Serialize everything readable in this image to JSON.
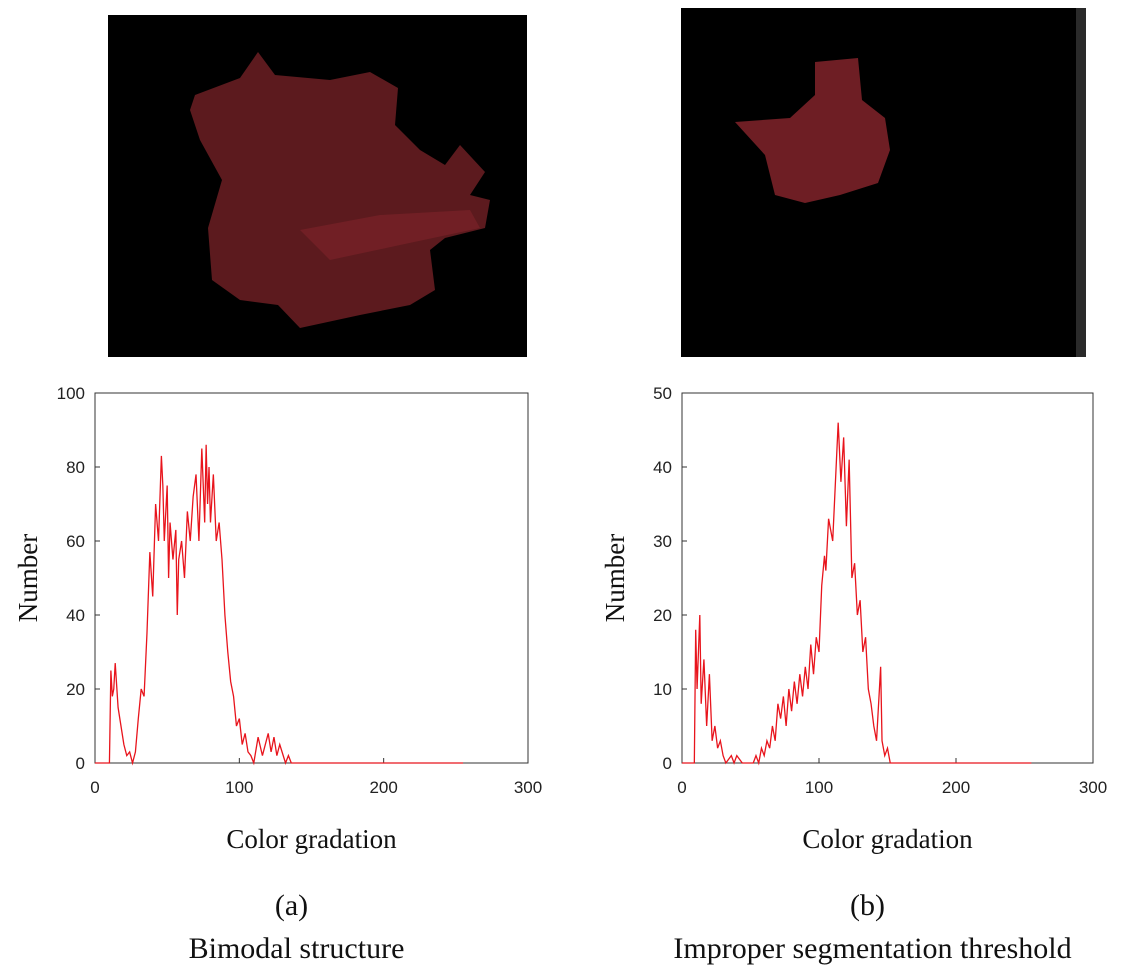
{
  "chart_data": [
    {
      "type": "line",
      "xlabel": "Color gradation",
      "ylabel": "Number",
      "panel_label": "(a)",
      "caption": "Bimodal structure",
      "xlim": [
        0,
        300
      ],
      "xticks": [
        0,
        100,
        200,
        300
      ],
      "ylim": [
        0,
        100
      ],
      "yticks": [
        0,
        20,
        40,
        60,
        80,
        100
      ],
      "grid": false,
      "series": [
        {
          "color": "#e8141c",
          "x": [
            0,
            10,
            11,
            12,
            13,
            14,
            16,
            18,
            20,
            22,
            24,
            26,
            28,
            30,
            32,
            34,
            36,
            38,
            40,
            42,
            44,
            46,
            47,
            48,
            50,
            51,
            52,
            54,
            56,
            57,
            58,
            60,
            62,
            64,
            66,
            68,
            70,
            72,
            74,
            76,
            77,
            78,
            79,
            80,
            82,
            84,
            86,
            88,
            90,
            92,
            94,
            96,
            98,
            100,
            102,
            104,
            106,
            108,
            110,
            113,
            116,
            120,
            122,
            124,
            126,
            128,
            132,
            134,
            136,
            140,
            255
          ],
          "values": [
            0,
            0,
            25,
            18,
            20,
            27,
            15,
            10,
            5,
            2,
            3,
            0,
            3,
            12,
            20,
            18,
            35,
            57,
            45,
            70,
            60,
            83,
            75,
            60,
            75,
            50,
            65,
            55,
            63,
            40,
            55,
            60,
            50,
            68,
            60,
            72,
            78,
            60,
            85,
            65,
            86,
            70,
            80,
            65,
            78,
            60,
            65,
            55,
            40,
            30,
            22,
            18,
            10,
            12,
            5,
            8,
            3,
            2,
            0,
            7,
            2,
            8,
            3,
            7,
            2,
            5,
            0,
            2,
            0,
            0,
            0
          ]
        }
      ]
    },
    {
      "type": "line",
      "xlabel": "Color gradation",
      "ylabel": "Number",
      "panel_label": "(b)",
      "caption": "Improper segmentation threshold",
      "xlim": [
        0,
        300
      ],
      "xticks": [
        0,
        100,
        200,
        300
      ],
      "ylim": [
        0,
        50
      ],
      "yticks": [
        0,
        10,
        20,
        30,
        40,
        50
      ],
      "grid": false,
      "series": [
        {
          "color": "#e8141c",
          "x": [
            0,
            9,
            10,
            11,
            13,
            14,
            16,
            18,
            20,
            22,
            24,
            26,
            28,
            30,
            32,
            36,
            38,
            40,
            44,
            52,
            54,
            56,
            58,
            60,
            62,
            64,
            66,
            68,
            70,
            72,
            74,
            76,
            78,
            80,
            82,
            84,
            86,
            88,
            90,
            92,
            94,
            96,
            98,
            100,
            102,
            104,
            105,
            107,
            110,
            112,
            114,
            116,
            118,
            120,
            122,
            124,
            126,
            128,
            130,
            132,
            134,
            136,
            138,
            140,
            142,
            145,
            146,
            148,
            150,
            152,
            255
          ],
          "values": [
            0,
            0,
            18,
            10,
            20,
            8,
            14,
            5,
            12,
            3,
            5,
            2,
            3,
            1,
            0,
            1,
            0,
            1,
            0,
            0,
            1,
            0,
            2,
            1,
            3,
            2,
            5,
            3,
            8,
            6,
            9,
            5,
            10,
            7,
            11,
            8,
            12,
            9,
            13,
            10,
            16,
            12,
            17,
            15,
            24,
            28,
            26,
            33,
            30,
            38,
            46,
            38,
            44,
            32,
            41,
            25,
            27,
            20,
            22,
            15,
            17,
            10,
            8,
            5,
            3,
            13,
            3,
            1,
            2,
            0,
            0
          ]
        }
      ]
    }
  ]
}
